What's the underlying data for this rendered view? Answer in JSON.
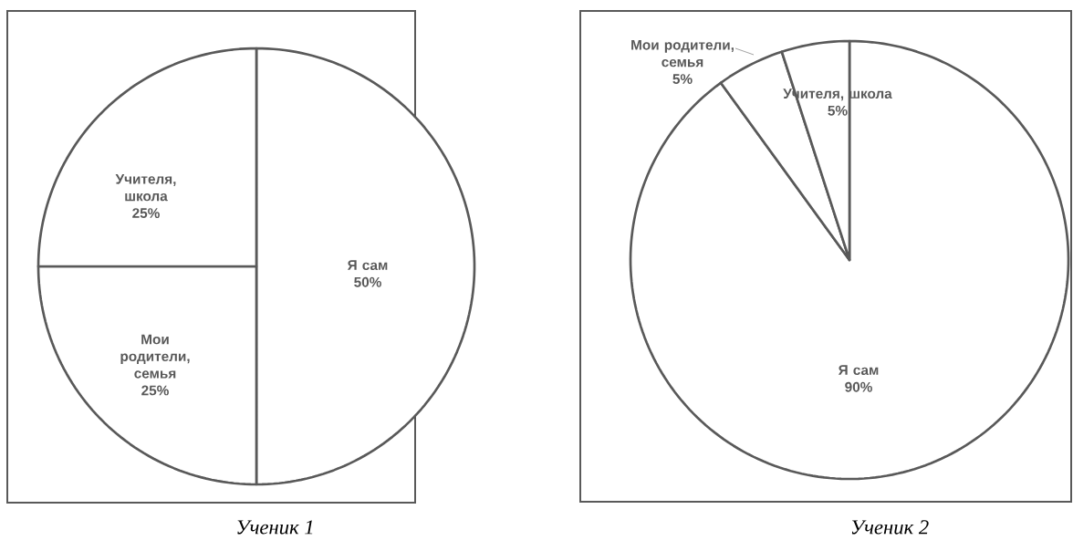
{
  "chart_data": [
    {
      "type": "pie",
      "title": "Ученик 1",
      "categories": [
        "Я сам",
        "Мои родители, семья",
        "Учителя, школа"
      ],
      "values": [
        50,
        25,
        25
      ],
      "value_labels": [
        "50%",
        "25%",
        "25%"
      ],
      "colors": [
        "#ffffff",
        "#ffffff",
        "#ffffff"
      ]
    },
    {
      "type": "pie",
      "title": "Ученик 2",
      "categories": [
        "Я сам",
        "Мои родители, семья",
        "Учителя, школа"
      ],
      "values": [
        90,
        5,
        5
      ],
      "value_labels": [
        "90%",
        "5%",
        "5%"
      ],
      "colors": [
        "#ffffff",
        "#ffffff",
        "#ffffff"
      ]
    }
  ]
}
